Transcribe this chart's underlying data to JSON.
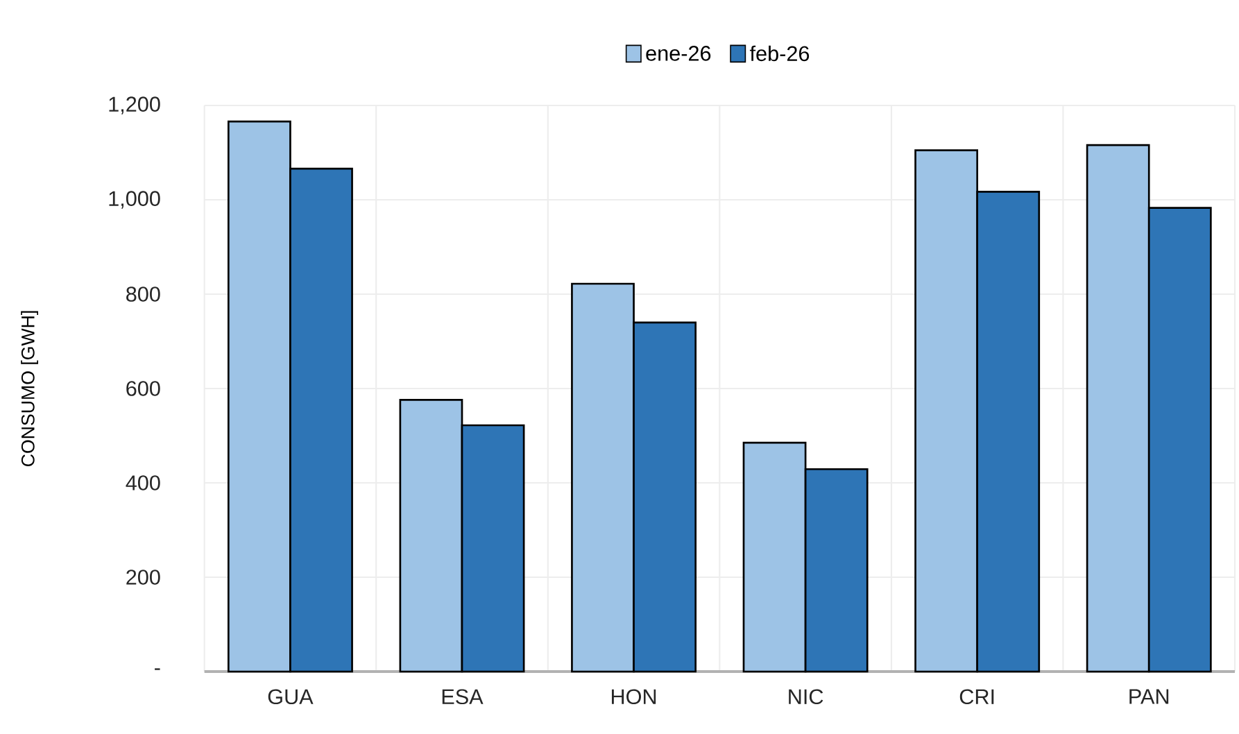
{
  "chart_data": {
    "type": "bar",
    "ylabel": "CONSUMO [GWH]",
    "categories": [
      "GUA",
      "ESA",
      "HON",
      "NIC",
      "CRI",
      "PAN"
    ],
    "series": [
      {
        "name": "ene-26",
        "color": "#9dc3e6",
        "values": [
          1166,
          576,
          822,
          485,
          1105,
          1116
        ]
      },
      {
        "name": "feb-26",
        "color": "#2e75b6",
        "values": [
          1066,
          522,
          740,
          429,
          1017,
          983
        ]
      }
    ],
    "ylim": [
      0,
      1200
    ],
    "yticks": [
      {
        "value": 0,
        "label": "-"
      },
      200,
      400,
      600,
      800,
      {
        "value": 1000,
        "label": "1,000"
      },
      {
        "value": 1200,
        "label": "1,200"
      }
    ],
    "grid": true,
    "legend": "top"
  }
}
